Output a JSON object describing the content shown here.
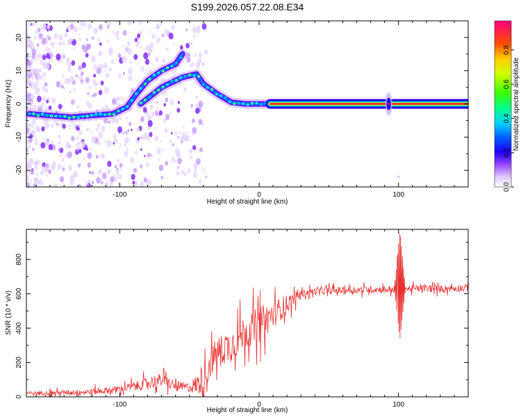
{
  "title": "S199.2026.057.22.08.E34",
  "chart_data": [
    {
      "type": "heatmap",
      "xlabel": "Height of straight line (km)",
      "ylabel": "Frequency (Hz)",
      "xlim": [
        -167,
        150
      ],
      "ylim": [
        -25,
        25
      ],
      "xticks": [
        -100,
        0,
        100
      ],
      "yticks": [
        -20,
        -10,
        0,
        10,
        20
      ],
      "colorbar": {
        "label": "Normalized spectral amplitude",
        "range": [
          0,
          0.97
        ],
        "ticks": [
          0.0,
          0.2,
          0.4,
          0.6,
          0.8
        ],
        "colors": [
          "#ffffff",
          "#b070ff",
          "#5000e0",
          "#0000ff",
          "#00c0ff",
          "#00ff80",
          "#80ff00",
          "#ffff00",
          "#ff8000",
          "#ff0040",
          "#ff0080"
        ]
      },
      "ridge": {
        "lower_branch": [
          [
            -165,
            -3
          ],
          [
            -150,
            -3.5
          ],
          [
            -135,
            -4
          ],
          [
            -120,
            -3.5
          ],
          [
            -105,
            -3
          ],
          [
            -95,
            -1
          ],
          [
            -88,
            3
          ],
          [
            -80,
            7
          ],
          [
            -70,
            10
          ],
          [
            -60,
            12
          ],
          [
            -55,
            15
          ]
        ],
        "upper_branch": [
          [
            -85,
            0
          ],
          [
            -70,
            5
          ],
          [
            -55,
            8
          ],
          [
            -45,
            9
          ],
          [
            -40,
            6
          ],
          [
            -30,
            3
          ],
          [
            -20,
            0.5
          ],
          [
            -10,
            0
          ],
          [
            0,
            0
          ],
          [
            8,
            0
          ]
        ],
        "line": [
          [
            8,
            0
          ],
          [
            150,
            0
          ]
        ],
        "spike_x": 93
      }
    },
    {
      "type": "line",
      "xlabel": "Height of straight line (km)",
      "ylabel": "SNR (10 * v/v)",
      "xlim": [
        -167,
        150
      ],
      "ylim": [
        0,
        975
      ],
      "xticks": [
        -100,
        0,
        100
      ],
      "yticks": [
        0,
        200,
        400,
        600,
        800
      ],
      "color": "#e83030",
      "envelope": [
        [
          -167,
          20
        ],
        [
          -140,
          25
        ],
        [
          -120,
          30
        ],
        [
          -100,
          45
        ],
        [
          -90,
          60
        ],
        [
          -80,
          80
        ],
        [
          -70,
          100
        ],
        [
          -60,
          60
        ],
        [
          -50,
          55
        ],
        [
          -40,
          90
        ],
        [
          -35,
          200
        ],
        [
          -30,
          260
        ],
        [
          -20,
          300
        ],
        [
          -10,
          380
        ],
        [
          0,
          420
        ],
        [
          10,
          480
        ],
        [
          20,
          540
        ],
        [
          30,
          600
        ],
        [
          40,
          615
        ],
        [
          60,
          620
        ],
        [
          80,
          625
        ],
        [
          95,
          625
        ],
        [
          100,
          630
        ],
        [
          110,
          630
        ],
        [
          130,
          630
        ],
        [
          150,
          635
        ]
      ],
      "noise": [
        [
          -167,
          15
        ],
        [
          -100,
          30
        ],
        [
          -75,
          55
        ],
        [
          -50,
          40
        ],
        [
          -40,
          120
        ],
        [
          -20,
          140
        ],
        [
          0,
          150
        ],
        [
          20,
          80
        ],
        [
          30,
          30
        ],
        [
          150,
          30
        ]
      ],
      "spike": {
        "x": 101,
        "max": 975,
        "min": 330
      }
    }
  ]
}
